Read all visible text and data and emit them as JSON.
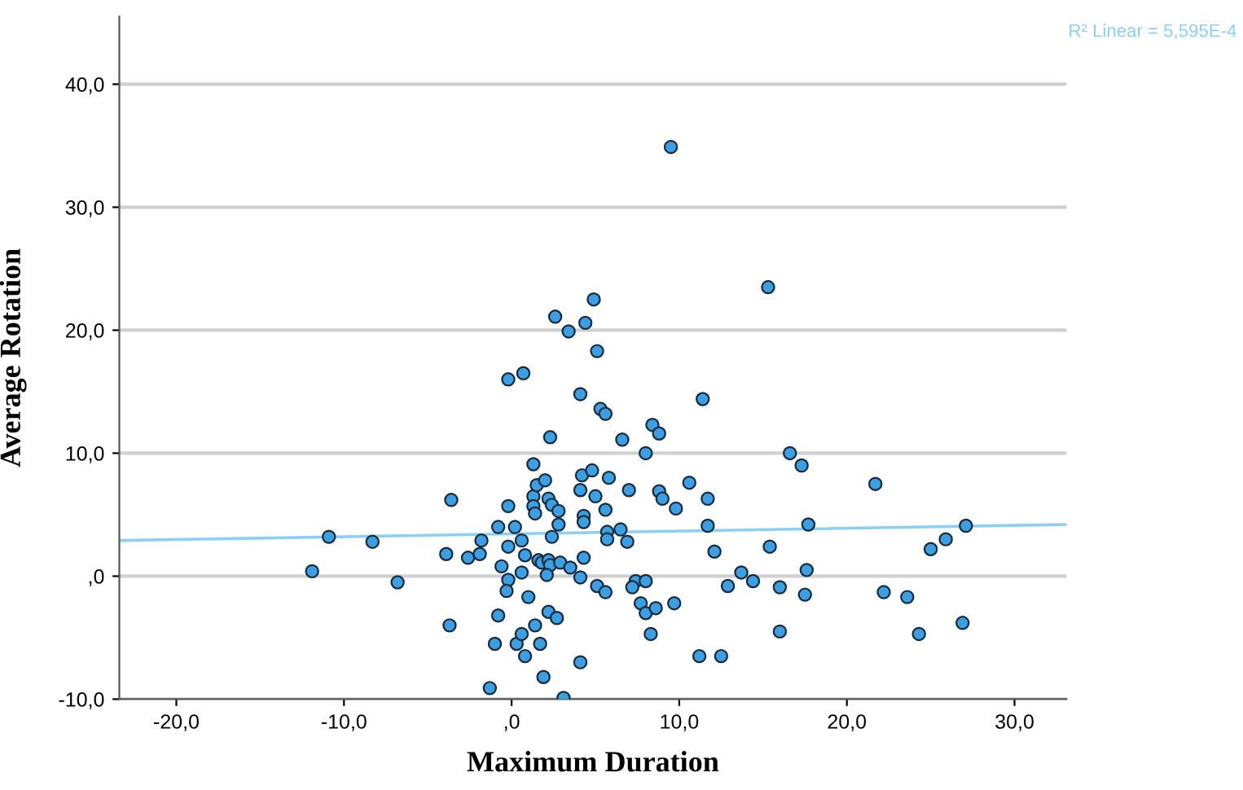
{
  "chart_data": {
    "type": "scatter",
    "xlabel": "Maximum Duration",
    "ylabel": "Average Rotation",
    "annotations": [
      "R² Linear = 5,595E-4"
    ],
    "xlim": [
      -23.4,
      33.1
    ],
    "ylim": [
      -10,
      45.5
    ],
    "xticks": [
      {
        "value": -20,
        "label": "-20,0"
      },
      {
        "value": -10,
        "label": "-10,0"
      },
      {
        "value": 0,
        "label": ",0"
      },
      {
        "value": 10,
        "label": "10,0"
      },
      {
        "value": 20,
        "label": "20,0"
      },
      {
        "value": 30,
        "label": "30,0"
      }
    ],
    "yticks": [
      {
        "value": -10,
        "label": "-10,0"
      },
      {
        "value": 0,
        "label": ",0"
      },
      {
        "value": 10,
        "label": "10,0"
      },
      {
        "value": 20,
        "label": "20,0"
      },
      {
        "value": 30,
        "label": "30,0"
      },
      {
        "value": 40,
        "label": "40,0"
      }
    ],
    "grid": "y",
    "series": [
      {
        "color": "#3a9fe3",
        "marker": "circle",
        "x": [
          -11.9,
          -10.9,
          -8.3,
          -6.8,
          -3.9,
          -3.7,
          -3.6,
          -2.6,
          -1.8,
          -1.9,
          -1.3,
          -1.0,
          -0.8,
          -0.8,
          -0.2,
          -0.6,
          -0.2,
          -0.3,
          -0.2,
          0.2,
          0.3,
          0.6,
          1.4,
          1.7,
          0.8,
          2.2,
          2.7,
          4.1,
          1.9,
          3.1,
          0.6,
          0.8,
          0.6,
          1.0,
          1.3,
          1.5,
          2.0,
          1.3,
          1.4,
          2.2,
          2.4,
          2.8,
          2.8,
          2.4,
          1.6,
          1.8,
          2.2,
          2.3,
          2.9,
          3.5,
          2.1,
          4.1,
          4.3,
          4.3,
          4.3,
          4.2,
          4.1,
          4.8,
          5.8,
          5.0,
          5.6,
          7.0,
          5.7,
          5.7,
          6.5,
          6.9,
          5.1,
          5.6,
          7.4,
          8.0,
          7.2,
          7.7,
          8.0,
          8.6,
          9.7,
          8.3,
          8.8,
          9.0,
          9.8,
          10.6,
          11.7,
          11.7,
          12.1,
          12.9,
          13.7,
          11.2,
          12.5,
          14.4,
          15.3,
          16.6,
          17.3,
          21.7,
          17.7,
          15.4,
          25.0,
          25.9,
          27.1,
          16.0,
          17.6,
          17.5,
          22.2,
          23.6,
          16.0,
          24.3,
          26.9,
          9.5,
          4.9,
          2.6,
          3.4,
          4.4,
          5.1,
          -0.2,
          0.7,
          4.1,
          5.3,
          5.6,
          11.4,
          2.3,
          6.6,
          8.4,
          8.8,
          8.0,
          1.3
        ],
        "values": [
          0.4,
          3.2,
          2.8,
          -0.5,
          1.8,
          -4.0,
          6.2,
          1.5,
          2.9,
          1.8,
          -9.1,
          -5.5,
          -3.2,
          4.0,
          5.7,
          0.8,
          -0.3,
          -1.2,
          2.4,
          4.0,
          -5.5,
          -4.7,
          -4.0,
          -5.5,
          -6.5,
          -2.9,
          -3.4,
          -7.0,
          -8.2,
          -9.9,
          0.3,
          1.7,
          2.9,
          -1.7,
          6.5,
          7.4,
          7.8,
          5.7,
          5.1,
          6.3,
          5.8,
          5.3,
          4.2,
          3.2,
          1.3,
          1.1,
          1.3,
          0.9,
          1.1,
          0.7,
          0.1,
          -0.1,
          1.5,
          4.9,
          4.4,
          8.2,
          7.0,
          8.6,
          8.0,
          6.5,
          5.4,
          7.0,
          3.6,
          3.0,
          3.8,
          2.8,
          -0.8,
          -1.3,
          -0.4,
          -0.4,
          -0.9,
          -2.2,
          -3.0,
          -2.6,
          -2.2,
          -4.7,
          6.9,
          6.3,
          5.5,
          7.6,
          6.3,
          4.1,
          2.0,
          -0.8,
          0.3,
          -6.5,
          -6.5,
          -0.4,
          23.5,
          10.0,
          9.0,
          7.5,
          4.2,
          2.4,
          2.2,
          3.0,
          4.1,
          -0.9,
          0.5,
          -1.5,
          -1.3,
          -1.7,
          -4.5,
          -4.7,
          -3.8,
          34.9,
          22.5,
          21.1,
          19.9,
          20.6,
          18.3,
          16.0,
          16.5,
          14.8,
          13.6,
          13.2,
          14.4,
          11.3,
          11.1,
          12.3,
          11.6,
          10.0,
          9.1
        ]
      },
      {
        "type": "line",
        "color": "#8ccff5",
        "marker": "none",
        "x": [
          -23.4,
          33.1
        ],
        "values": [
          2.9,
          4.2
        ]
      }
    ]
  }
}
